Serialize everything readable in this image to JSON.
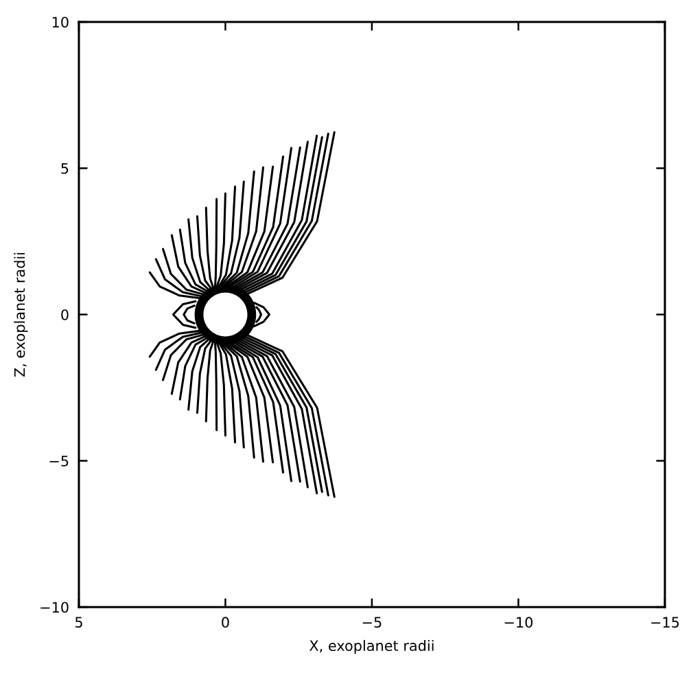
{
  "chart_data": {
    "type": "line",
    "xlabel": "X, exoplanet radii",
    "ylabel": "Z, exoplanet radii",
    "xlim": [
      5,
      -15
    ],
    "ylim": [
      -10,
      10
    ],
    "xticks": [
      5,
      0,
      -5,
      -10,
      -15
    ],
    "yticks": [
      -10,
      -5,
      0,
      5,
      10
    ],
    "grid": false,
    "marker": "none",
    "line_style": "solid",
    "series": [
      {
        "color": "#000000",
        "x": [
          1.02,
          1.45,
          1.78,
          1.45,
          1.02
        ],
        "values": [
          0.45,
          0.35,
          0,
          -0.35,
          -0.45
        ]
      },
      {
        "color": "#000000",
        "x": [
          1.06,
          1.3,
          1.42,
          1.3,
          1.06
        ],
        "values": [
          0.3,
          0.2,
          0,
          -0.2,
          -0.3
        ]
      },
      {
        "color": "#000000",
        "x": [
          -0.98,
          -1.3,
          -1.5,
          -1.3,
          -0.98
        ],
        "values": [
          0.4,
          0.25,
          0,
          -0.25,
          -0.4
        ]
      },
      {
        "color": "#000000",
        "x": [
          -1.06,
          -1.15,
          -1.22,
          -1.15,
          -1.06
        ],
        "values": [
          0.25,
          0.15,
          0,
          -0.15,
          -0.25
        ]
      },
      {
        "color": "#000000",
        "x": [
          0.89,
          1.57,
          2.24,
          2.58
        ],
        "values": [
          0.56,
          0.65,
          0.96,
          1.44
        ]
      },
      {
        "color": "#000000",
        "x": [
          0.84,
          1.45,
          2.06,
          2.37
        ],
        "values": [
          0.63,
          0.76,
          1.2,
          1.89
        ]
      },
      {
        "color": "#000000",
        "x": [
          0.79,
          1.33,
          1.86,
          2.13
        ],
        "values": [
          0.7,
          0.85,
          1.39,
          2.24
        ]
      },
      {
        "color": "#000000",
        "x": [
          0.72,
          1.16,
          1.61,
          1.83
        ],
        "values": [
          0.76,
          0.96,
          1.64,
          2.71
        ]
      },
      {
        "color": "#000000",
        "x": [
          0.66,
          1.02,
          1.37,
          1.55
        ],
        "values": [
          0.82,
          1.03,
          1.76,
          2.9
        ]
      },
      {
        "color": "#000000",
        "x": [
          0.59,
          0.86,
          1.13,
          1.26
        ],
        "values": [
          0.87,
          1.11,
          1.94,
          3.25
        ]
      },
      {
        "color": "#000000",
        "x": [
          0.51,
          0.69,
          0.87,
          0.96
        ],
        "values": [
          0.92,
          1.16,
          2.02,
          3.36
        ]
      },
      {
        "color": "#000000",
        "x": [
          0.43,
          0.52,
          0.61,
          0.66
        ],
        "values": [
          0.96,
          1.23,
          2.17,
          3.65
        ]
      },
      {
        "color": "#000000",
        "x": [
          0.35,
          0.33,
          0.31,
          0.3
        ],
        "values": [
          0.99,
          1.29,
          2.32,
          3.95
        ]
      },
      {
        "color": "#000000",
        "x": [
          0.27,
          0.16,
          0.05,
          0.0
        ],
        "values": [
          1.02,
          1.33,
          2.42,
          4.14
        ]
      },
      {
        "color": "#000000",
        "x": [
          0.18,
          -0.02,
          -0.23,
          -0.33
        ],
        "values": [
          1.03,
          1.36,
          2.53,
          4.37
        ]
      },
      {
        "color": "#000000",
        "x": [
          0.1,
          -0.19,
          -0.48,
          -0.63
        ],
        "values": [
          1.05,
          1.4,
          2.62,
          4.54
        ]
      },
      {
        "color": "#000000",
        "x": [
          0.01,
          -0.39,
          -0.78,
          -0.98
        ],
        "values": [
          1.05,
          1.43,
          2.78,
          4.89
        ]
      },
      {
        "color": "#000000",
        "x": [
          -0.08,
          -0.56,
          -1.05,
          -1.29
        ],
        "values": [
          1.05,
          1.45,
          2.84,
          5.03
        ]
      },
      {
        "color": "#000000",
        "x": [
          -0.17,
          -0.75,
          -1.33,
          -1.62
        ],
        "values": [
          1.04,
          1.44,
          2.84,
          5.05
        ]
      },
      {
        "color": "#000000",
        "x": [
          -0.25,
          -0.94,
          -1.63,
          -1.97
        ],
        "values": [
          1.02,
          1.46,
          2.99,
          5.4
        ]
      },
      {
        "color": "#000000",
        "x": [
          -0.34,
          -1.1,
          -1.87,
          -2.25
        ],
        "values": [
          0.99,
          1.46,
          3.11,
          5.69
        ]
      },
      {
        "color": "#000000",
        "x": [
          -0.42,
          -1.27,
          -2.12,
          -2.55
        ],
        "values": [
          0.96,
          1.44,
          3.1,
          5.71
        ]
      },
      {
        "color": "#000000",
        "x": [
          -0.5,
          -1.42,
          -2.35,
          -2.81
        ],
        "values": [
          0.92,
          1.42,
          3.16,
          5.9
        ]
      },
      {
        "color": "#000000",
        "x": [
          -0.58,
          -1.6,
          -2.61,
          -3.12
        ],
        "values": [
          0.88,
          1.4,
          3.23,
          6.11
        ]
      },
      {
        "color": "#000000",
        "x": [
          -0.65,
          -1.71,
          -2.77,
          -3.3
        ],
        "values": [
          0.83,
          1.35,
          3.18,
          6.06
        ]
      },
      {
        "color": "#000000",
        "x": [
          -0.71,
          -1.83,
          -2.95,
          -3.51
        ],
        "values": [
          0.77,
          1.31,
          3.2,
          6.18
        ]
      },
      {
        "color": "#000000",
        "x": [
          -0.77,
          -1.95,
          -3.13,
          -3.72
        ],
        "values": [
          0.71,
          1.26,
          3.19,
          6.23
        ]
      },
      {
        "color": "#000000",
        "x": [
          0.89,
          1.57,
          2.24,
          2.58
        ],
        "values": [
          -0.56,
          -0.65,
          -0.96,
          -1.44
        ]
      },
      {
        "color": "#000000",
        "x": [
          0.84,
          1.45,
          2.06,
          2.37
        ],
        "values": [
          -0.63,
          -0.76,
          -1.2,
          -1.89
        ]
      },
      {
        "color": "#000000",
        "x": [
          0.79,
          1.33,
          1.86,
          2.13
        ],
        "values": [
          -0.7,
          -0.85,
          -1.39,
          -2.24
        ]
      },
      {
        "color": "#000000",
        "x": [
          0.72,
          1.16,
          1.61,
          1.83
        ],
        "values": [
          -0.76,
          -0.96,
          -1.64,
          -2.71
        ]
      },
      {
        "color": "#000000",
        "x": [
          0.66,
          1.02,
          1.37,
          1.55
        ],
        "values": [
          -0.82,
          -1.03,
          -1.76,
          -2.9
        ]
      },
      {
        "color": "#000000",
        "x": [
          0.59,
          0.86,
          1.13,
          1.26
        ],
        "values": [
          -0.87,
          -1.11,
          -1.94,
          -3.25
        ]
      },
      {
        "color": "#000000",
        "x": [
          0.51,
          0.69,
          0.87,
          0.96
        ],
        "values": [
          -0.92,
          -1.16,
          -2.02,
          -3.36
        ]
      },
      {
        "color": "#000000",
        "x": [
          0.43,
          0.52,
          0.61,
          0.66
        ],
        "values": [
          -0.96,
          -1.23,
          -2.17,
          -3.65
        ]
      },
      {
        "color": "#000000",
        "x": [
          0.35,
          0.33,
          0.31,
          0.3
        ],
        "values": [
          -0.99,
          -1.29,
          -2.32,
          -3.95
        ]
      },
      {
        "color": "#000000",
        "x": [
          0.27,
          0.16,
          0.05,
          0.0
        ],
        "values": [
          -1.02,
          -1.33,
          -2.42,
          -4.14
        ]
      },
      {
        "color": "#000000",
        "x": [
          0.18,
          -0.02,
          -0.23,
          -0.33
        ],
        "values": [
          -1.03,
          -1.36,
          -2.53,
          -4.37
        ]
      },
      {
        "color": "#000000",
        "x": [
          0.1,
          -0.19,
          -0.48,
          -0.63
        ],
        "values": [
          -1.05,
          -1.4,
          -2.62,
          -4.54
        ]
      },
      {
        "color": "#000000",
        "x": [
          0.01,
          -0.39,
          -0.78,
          -0.98
        ],
        "values": [
          -1.05,
          -1.43,
          -2.78,
          -4.89
        ]
      },
      {
        "color": "#000000",
        "x": [
          -0.08,
          -0.56,
          -1.05,
          -1.29
        ],
        "values": [
          -1.05,
          -1.45,
          -2.84,
          -5.03
        ]
      },
      {
        "color": "#000000",
        "x": [
          -0.17,
          -0.75,
          -1.33,
          -1.62
        ],
        "values": [
          -1.04,
          -1.44,
          -2.84,
          -5.05
        ]
      },
      {
        "color": "#000000",
        "x": [
          -0.25,
          -0.94,
          -1.63,
          -1.97
        ],
        "values": [
          -1.02,
          -1.46,
          -2.99,
          -5.4
        ]
      },
      {
        "color": "#000000",
        "x": [
          -0.34,
          -1.1,
          -1.87,
          -2.25
        ],
        "values": [
          -0.99,
          -1.46,
          -3.11,
          -5.69
        ]
      },
      {
        "color": "#000000",
        "x": [
          -0.42,
          -1.27,
          -2.12,
          -2.55
        ],
        "values": [
          -0.96,
          -1.44,
          -3.1,
          -5.71
        ]
      },
      {
        "color": "#000000",
        "x": [
          -0.5,
          -1.42,
          -2.35,
          -2.81
        ],
        "values": [
          -0.92,
          -1.42,
          -3.16,
          -5.9
        ]
      },
      {
        "color": "#000000",
        "x": [
          -0.58,
          -1.6,
          -2.61,
          -3.12
        ],
        "values": [
          -0.88,
          -1.4,
          -3.23,
          -6.11
        ]
      },
      {
        "color": "#000000",
        "x": [
          -0.65,
          -1.71,
          -2.77,
          -3.3
        ],
        "values": [
          -0.83,
          -1.35,
          -3.18,
          -6.06
        ]
      },
      {
        "color": "#000000",
        "x": [
          -0.71,
          -1.83,
          -2.95,
          -3.51
        ],
        "values": [
          -0.77,
          -1.31,
          -3.2,
          -6.18
        ]
      },
      {
        "color": "#000000",
        "x": [
          -0.77,
          -1.95,
          -3.13,
          -3.72
        ],
        "values": [
          -0.71,
          -1.26,
          -3.19,
          -6.23
        ]
      }
    ]
  }
}
